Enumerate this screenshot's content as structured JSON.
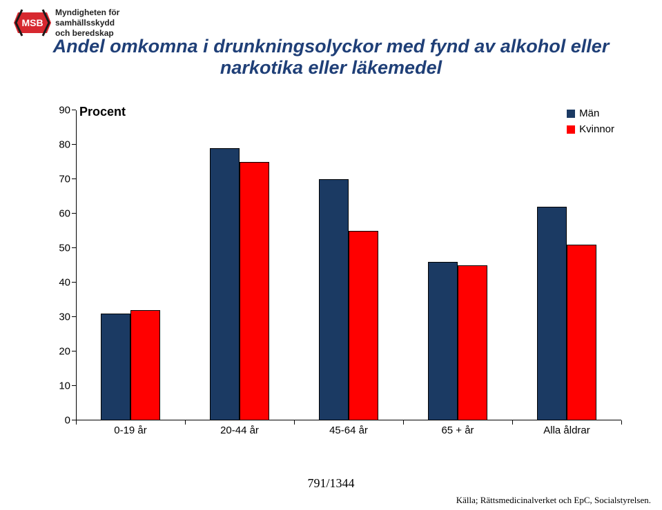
{
  "logo": {
    "line1": "Myndigheten för",
    "line2": "samhällsskydd",
    "line3": "och beredskap",
    "acronym": "MSB",
    "red": "#d7282f",
    "black": "#1a1a1a"
  },
  "title": {
    "text": "Andel omkomna i drunkningsolyckor med fynd av alkohol eller narkotika eller läkemedel",
    "color": "#1f3f77",
    "fontsize": 27
  },
  "chart": {
    "type": "bar",
    "categories": [
      "0-19 år",
      "20-44 år",
      "45-64 år",
      "65 + år",
      "Alla åldrar"
    ],
    "series": [
      {
        "name": "Män",
        "color": "#1b3a63",
        "values": [
          31,
          79,
          70,
          46,
          62
        ]
      },
      {
        "name": "Kvinnor",
        "color": "#ff0000",
        "values": [
          32,
          75,
          55,
          45,
          51
        ]
      }
    ],
    "y_label": "Procent",
    "y_label_fontsize": 18,
    "ylim": [
      0,
      90
    ],
    "ytick_step": 10,
    "tick_fontsize": 15,
    "bar_border": "#000000",
    "axis_color": "#000000",
    "bar_pair_rel_width": 0.55,
    "background_color": "#ffffff",
    "legend_fontsize": 15
  },
  "footer": {
    "page_num": "791/1344",
    "source": "Källa; Rättsmedicinalverket och EpC, Socialstyrelsen."
  }
}
